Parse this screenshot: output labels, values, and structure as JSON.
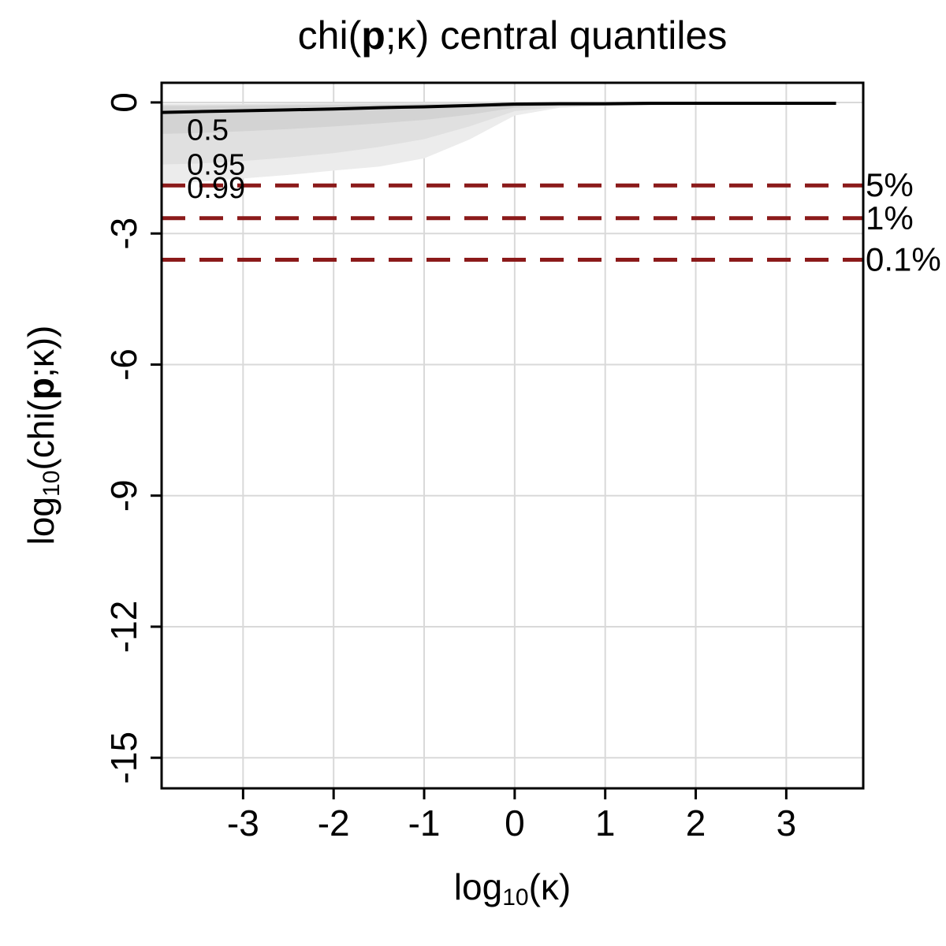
{
  "labels": {
    "title": {
      "pre": "chi(",
      "bold_p": "p",
      "post": ";κ) central quantiles"
    },
    "x_axis": {
      "fn": "log",
      "sub": "10",
      "arg": "(κ)"
    },
    "y_axis": {
      "fn": "log",
      "sub": "10",
      "arg_pre": "(chi(",
      "bold_p": "p",
      "arg_post": ";κ))"
    }
  },
  "colors": {
    "threshold_line": "#8B1A1A",
    "grid_line": "#d9d9d9",
    "median_line": "#000000",
    "plot_border": "#000000",
    "band_99": "#ececec",
    "band_95": "#e0e0e0",
    "band_50": "#d3d3d3"
  },
  "chart_data": {
    "type": "line",
    "title": "chi(p;κ) central quantiles",
    "xlabel": "log10(κ)",
    "ylabel": "log10(chi(p;κ))",
    "grid": true,
    "xlim": [
      -3.9,
      3.85
    ],
    "ylim": [
      -15.7,
      0.45
    ],
    "xticks": [
      -3,
      -2,
      -1,
      0,
      1,
      2,
      3
    ],
    "yticks": [
      0,
      -3,
      -6,
      -9,
      -12,
      -15
    ],
    "x": [
      -3.9,
      -3.5,
      -3,
      -2.5,
      -2,
      -1.5,
      -1,
      -0.5,
      0,
      0.5,
      1,
      1.5,
      2,
      2.5,
      3,
      3.55
    ],
    "median": [
      -0.23,
      -0.21,
      -0.19,
      -0.17,
      -0.15,
      -0.12,
      -0.1,
      -0.07,
      -0.04,
      -0.03,
      -0.03,
      -0.02,
      -0.02,
      -0.02,
      -0.02,
      -0.02
    ],
    "bands": [
      {
        "label": "0.99",
        "level": 0.99,
        "color_key": "band_99",
        "upper": [
          -0.03,
          -0.03,
          -0.03,
          -0.02,
          -0.02,
          -0.02,
          -0.01,
          -0.01,
          -0.01,
          -0.01,
          -0.01,
          -0.01,
          -0.01,
          -0.01,
          -0.01,
          -0.01
        ],
        "lower": [
          -1.85,
          -1.82,
          -1.74,
          -1.66,
          -1.56,
          -1.47,
          -1.28,
          -0.85,
          -0.3,
          -0.12,
          -0.08,
          -0.07,
          -0.06,
          -0.05,
          -0.05,
          -0.04
        ]
      },
      {
        "label": "0.95",
        "level": 0.95,
        "color_key": "band_95",
        "upper": [
          -0.05,
          -0.05,
          -0.04,
          -0.04,
          -0.03,
          -0.03,
          -0.02,
          -0.02,
          -0.01,
          -0.01,
          -0.01,
          -0.01,
          -0.01,
          -0.01,
          -0.01,
          -0.01
        ],
        "lower": [
          -1.42,
          -1.4,
          -1.34,
          -1.26,
          -1.16,
          -1.02,
          -0.84,
          -0.55,
          -0.2,
          -0.1,
          -0.07,
          -0.06,
          -0.05,
          -0.05,
          -0.04,
          -0.04
        ]
      },
      {
        "label": "0.5",
        "level": 0.5,
        "color_key": "band_50",
        "upper": [
          -0.08,
          -0.08,
          -0.07,
          -0.06,
          -0.06,
          -0.05,
          -0.04,
          -0.03,
          -0.02,
          -0.01,
          -0.01,
          -0.01,
          -0.01,
          -0.01,
          -0.01,
          -0.01
        ],
        "lower": [
          -0.72,
          -0.7,
          -0.66,
          -0.61,
          -0.55,
          -0.48,
          -0.4,
          -0.28,
          -0.12,
          -0.07,
          -0.05,
          -0.04,
          -0.04,
          -0.03,
          -0.03,
          -0.03
        ]
      }
    ],
    "band_annotations": [
      {
        "text": "0.5",
        "x": -3.62,
        "y": -0.62
      },
      {
        "text": "0.95",
        "x": -3.62,
        "y": -1.42
      },
      {
        "text": "0.99",
        "x": -3.62,
        "y": -1.95
      }
    ],
    "thresholds": [
      {
        "label": "5%",
        "y": -1.9
      },
      {
        "label": "1%",
        "y": -2.65
      },
      {
        "label": "0.1%",
        "y": -3.6
      }
    ],
    "legend_position": "none"
  }
}
